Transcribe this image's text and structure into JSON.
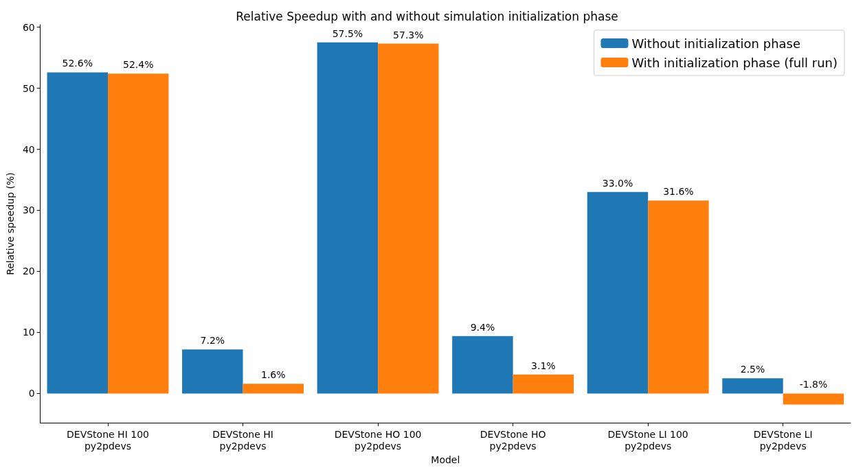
{
  "chart_data": {
    "type": "bar",
    "title": "Relative Speedup with and without simulation initialization phase",
    "xlabel": "Model",
    "ylabel": "Relative speedup (%)",
    "categories": [
      "DEVStone HI 100\npy2pdevs",
      "DEVStone HI\npy2pdevs",
      "DEVStone HO 100\npy2pdevs",
      "DEVStone HO\npy2pdevs",
      "DEVStone LI 100\npy2pdevs",
      "DEVStone LI\npy2pdevs"
    ],
    "series": [
      {
        "name": "Without initialization phase",
        "color": "#1f77b4",
        "values": [
          52.6,
          7.2,
          57.5,
          9.4,
          33.0,
          2.5
        ],
        "value_labels": [
          "52.6%",
          "7.2%",
          "57.5%",
          "9.4%",
          "33.0%",
          "2.5%"
        ]
      },
      {
        "name": "With initialization phase (full run)",
        "color": "#ff7f0e",
        "values": [
          52.4,
          1.6,
          57.3,
          3.1,
          31.6,
          -1.8
        ],
        "value_labels": [
          "52.4%",
          "1.6%",
          "57.3%",
          "3.1%",
          "31.6%",
          "-1.8%"
        ]
      }
    ],
    "ylim": [
      -4.8,
      60.4
    ],
    "yticks": [
      0,
      10,
      20,
      30,
      40,
      50,
      60
    ],
    "grid": false,
    "legend": "top right"
  }
}
